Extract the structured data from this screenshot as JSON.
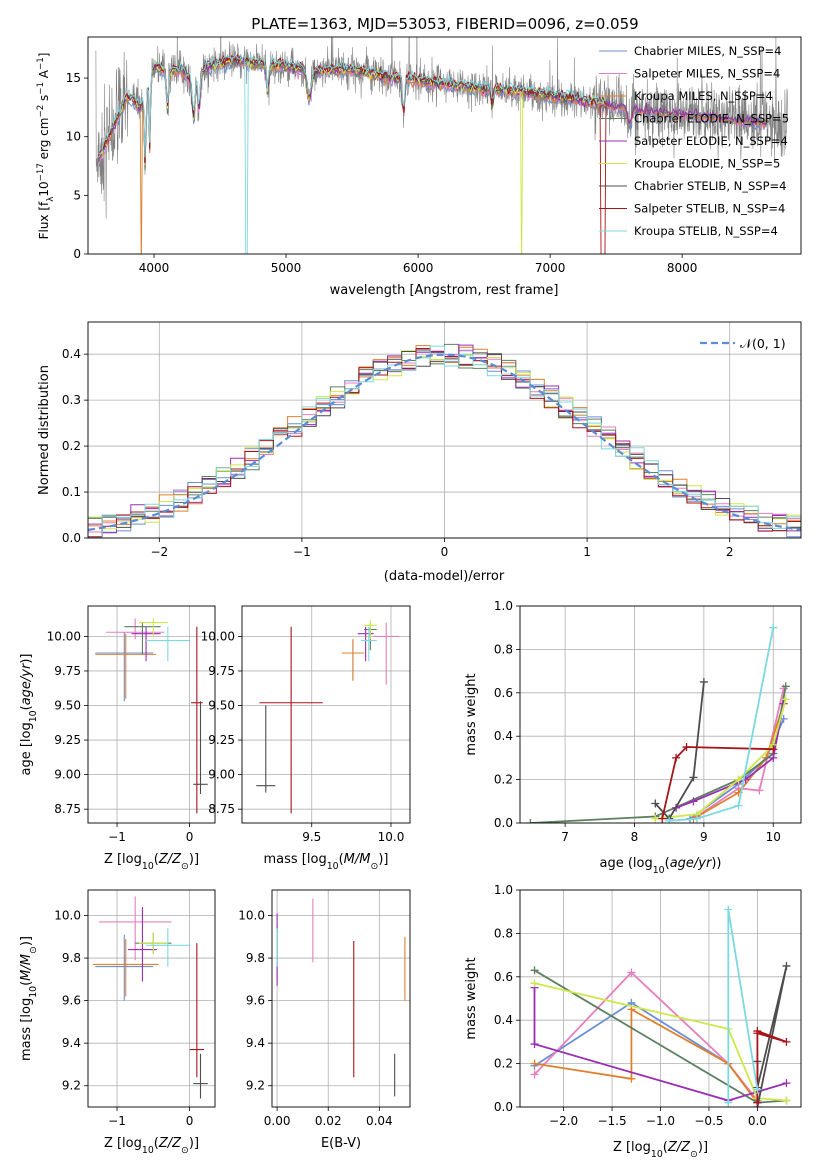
{
  "figure": {
    "title": "PLATE=1363, MJD=53053, FIBERID=0096, z=0.059"
  },
  "colors": {
    "Chabrier MILES": "#6b8fd6",
    "Salpeter MILES": "#e57fbf",
    "Kroupa MILES": "#e0802f",
    "Chabrier ELODIE": "#5c8060",
    "Salpeter ELODIE": "#9a2fb3",
    "Kroupa ELODIE": "#cde84a",
    "Chabrier STELIB": "#4d4d4d",
    "Salpeter STELIB": "#a8141a",
    "Kroupa STELIB": "#7dd8e0",
    "data": "#808080",
    "gaussian": "#5b8cd6"
  },
  "legend_spectrum": [
    {
      "name": "Chabrier MILES",
      "label": "Chabrier MILES, N_SSP=4"
    },
    {
      "name": "Salpeter MILES",
      "label": "Salpeter MILES, N_SSP=4"
    },
    {
      "name": "Kroupa MILES",
      "label": "Kroupa MILES, N_SSP=4"
    },
    {
      "name": "Chabrier ELODIE",
      "label": "Chabrier ELODIE, N_SSP=5"
    },
    {
      "name": "Salpeter ELODIE",
      "label": "Salpeter ELODIE, N_SSP=4"
    },
    {
      "name": "Kroupa ELODIE",
      "label": "Kroupa ELODIE, N_SSP=5"
    },
    {
      "name": "Chabrier STELIB",
      "label": "Chabrier STELIB, N_SSP=4"
    },
    {
      "name": "Salpeter STELIB",
      "label": "Salpeter STELIB, N_SSP=4"
    },
    {
      "name": "Kroupa STELIB",
      "label": "Kroupa STELIB, N_SSP=4"
    }
  ],
  "chart_data": [
    {
      "id": "spectrum",
      "type": "line",
      "xlabel": "wavelength [Angstrom, rest frame]",
      "ylabel": "Flux [f_λ 10^-17 erg cm^-2 s^-1 A^-1]",
      "xlim": [
        3500,
        8900
      ],
      "ylim": [
        0,
        18.5
      ],
      "xticks": [
        4000,
        5000,
        6000,
        7000,
        8000
      ],
      "yticks": [
        0,
        5,
        10,
        15
      ],
      "continuum": {
        "x": [
          3560,
          3600,
          3700,
          3800,
          3900,
          3950,
          4000,
          4100,
          4200,
          4300,
          4400,
          4500,
          4600,
          4800,
          5000,
          5200,
          5400,
          5600,
          5800,
          6000,
          6200,
          6400,
          6600,
          6800,
          7000,
          7200,
          7400,
          7600,
          7800,
          8000,
          8200,
          8400,
          8600,
          8800
        ],
        "y": [
          8.0,
          8.5,
          11.0,
          13.5,
          12.5,
          14.0,
          16.0,
          15.5,
          15.8,
          14.5,
          16.0,
          16.2,
          16.5,
          16.2,
          16.0,
          15.5,
          15.8,
          15.5,
          15.0,
          14.8,
          14.5,
          14.2,
          14.0,
          13.8,
          13.5,
          13.2,
          12.8,
          12.5,
          12.2,
          12.0,
          11.8,
          11.5,
          11.3,
          11.1
        ]
      },
      "grid": false,
      "legend": "upper-right"
    },
    {
      "id": "residuals",
      "type": "histogram",
      "xlabel": "(data-model)/error",
      "ylabel": "Normed distribution",
      "xlim": [
        -2.5,
        2.5
      ],
      "ylim": [
        0,
        0.47
      ],
      "xticks": [
        -2,
        -1,
        0,
        1,
        2
      ],
      "yticks": [
        0.0,
        0.1,
        0.2,
        0.3,
        0.4
      ],
      "bin_width": 0.1,
      "gaussian_label": "N(0,1)",
      "grid": true,
      "legend": "upper-right"
    },
    {
      "id": "age_vs_Z",
      "type": "errorbar",
      "xlabel": "Z [log10(Z/Z_sun)]",
      "ylabel": "age [log10(age/yr)]",
      "xlim": [
        -1.4,
        0.35
      ],
      "ylim": [
        8.65,
        10.22
      ],
      "xticks": [
        -1,
        0
      ],
      "yticks": [
        8.75,
        9.0,
        9.25,
        9.5,
        9.75,
        10.0
      ],
      "points": [
        {
          "model": "Chabrier MILES",
          "x": -0.9,
          "xerr": 0.4,
          "y": 9.88,
          "yerr": [
            0.35,
            0.15
          ]
        },
        {
          "model": "Salpeter MILES",
          "x": -0.75,
          "xerr": 0.4,
          "y": 10.03,
          "yerr": [
            0.05,
            0.1
          ]
        },
        {
          "model": "Kroupa MILES",
          "x": -0.88,
          "xerr": 0.42,
          "y": 9.87,
          "yerr": [
            0.32,
            0.15
          ]
        },
        {
          "model": "Chabrier ELODIE",
          "x": -0.65,
          "xerr": 0.25,
          "y": 10.07,
          "yerr": [
            0.2,
            0.03
          ]
        },
        {
          "model": "Salpeter ELODIE",
          "x": -0.6,
          "xerr": 0.2,
          "y": 10.02,
          "yerr": [
            0.2,
            0.05
          ]
        },
        {
          "model": "Kroupa ELODIE",
          "x": -0.5,
          "xerr": 0.2,
          "y": 10.1,
          "yerr": [
            0.1,
            0.03
          ]
        },
        {
          "model": "Chabrier STELIB",
          "x": 0.15,
          "xerr": 0.1,
          "y": 8.93,
          "yerr": [
            0.07,
            0.6
          ]
        },
        {
          "model": "Salpeter STELIB",
          "x": 0.1,
          "xerr": 0.08,
          "y": 9.52,
          "yerr": [
            0.8,
            0.55
          ]
        },
        {
          "model": "Kroupa STELIB",
          "x": -0.3,
          "xerr": 0.3,
          "y": 9.97,
          "yerr": [
            0.15,
            0.1
          ]
        }
      ],
      "grid": true
    },
    {
      "id": "age_vs_mass",
      "type": "errorbar",
      "xlabel": "mass [log10(M/M_sun)]",
      "ylabel": "",
      "xlim": [
        9.06,
        10.12
      ],
      "ylim": [
        8.65,
        10.22
      ],
      "xticks": [
        9.5,
        10.0
      ],
      "yticks": [
        8.75,
        9.0,
        9.25,
        9.5,
        9.75,
        10.0
      ],
      "points": [
        {
          "model": "Chabrier MILES",
          "x": 9.76,
          "xerr": 0.06,
          "y": 9.88,
          "yerr": [
            0.2,
            0.1
          ]
        },
        {
          "model": "Salpeter MILES",
          "x": 9.97,
          "xerr": 0.08,
          "y": 10.0,
          "yerr": [
            0.35,
            0.1
          ]
        },
        {
          "model": "Kroupa MILES",
          "x": 9.76,
          "xerr": 0.07,
          "y": 9.88,
          "yerr": [
            0.2,
            0.1
          ]
        },
        {
          "model": "Chabrier ELODIE",
          "x": 9.87,
          "xerr": 0.04,
          "y": 10.05,
          "yerr": [
            0.15,
            0.05
          ]
        },
        {
          "model": "Salpeter ELODIE",
          "x": 9.84,
          "xerr": 0.05,
          "y": 10.02,
          "yerr": [
            0.2,
            0.05
          ]
        },
        {
          "model": "Kroupa ELODIE",
          "x": 9.87,
          "xerr": 0.04,
          "y": 10.08,
          "yerr": [
            0.1,
            0.04
          ]
        },
        {
          "model": "Chabrier STELIB",
          "x": 9.21,
          "xerr": 0.06,
          "y": 8.92,
          "yerr": [
            0.05,
            0.58
          ]
        },
        {
          "model": "Salpeter STELIB",
          "x": 9.37,
          "xerr": 0.2,
          "y": 9.52,
          "yerr": [
            0.8,
            0.55
          ]
        },
        {
          "model": "Kroupa STELIB",
          "x": 9.86,
          "xerr": 0.05,
          "y": 9.97,
          "yerr": [
            0.15,
            0.1
          ]
        }
      ],
      "grid": true
    },
    {
      "id": "weight_vs_age",
      "type": "line",
      "xlabel": "age (log10(age/yr))",
      "ylabel": "mass weight",
      "xlim": [
        6.35,
        10.4
      ],
      "ylim": [
        0,
        1.0
      ],
      "xticks": [
        7,
        8,
        9,
        10
      ],
      "yticks": [
        0.0,
        0.2,
        0.4,
        0.6,
        0.8,
        1.0
      ],
      "series": [
        {
          "model": "Chabrier MILES",
          "x": [
            8.8,
            9.5,
            9.9,
            10.15
          ],
          "y": [
            0.02,
            0.18,
            0.3,
            0.48
          ]
        },
        {
          "model": "Salpeter MILES",
          "x": [
            8.9,
            9.5,
            9.8,
            10.15
          ],
          "y": [
            0.03,
            0.16,
            0.15,
            0.62
          ]
        },
        {
          "model": "Kroupa MILES",
          "x": [
            8.85,
            9.5,
            9.9,
            10.15
          ],
          "y": [
            0.02,
            0.14,
            0.3,
            0.55
          ]
        },
        {
          "model": "Chabrier ELODIE",
          "x": [
            6.5,
            8.3,
            9.5,
            10.0,
            10.18
          ],
          "y": [
            0.0,
            0.03,
            0.2,
            0.32,
            0.63
          ]
        },
        {
          "model": "Salpeter ELODIE",
          "x": [
            8.6,
            8.85,
            9.6,
            10.0,
            10.15
          ],
          "y": [
            0.07,
            0.1,
            0.2,
            0.3,
            0.55
          ]
        },
        {
          "model": "Kroupa ELODIE",
          "x": [
            8.3,
            8.9,
            9.5,
            10.0,
            10.18
          ],
          "y": [
            0.02,
            0.04,
            0.2,
            0.36,
            0.57
          ]
        },
        {
          "model": "Chabrier STELIB",
          "x": [
            8.3,
            8.5,
            8.85,
            9.0
          ],
          "y": [
            0.09,
            0.02,
            0.21,
            0.65
          ]
        },
        {
          "model": "Salpeter STELIB",
          "x": [
            8.4,
            8.6,
            8.75,
            10.0
          ],
          "y": [
            0.02,
            0.3,
            0.35,
            0.34
          ]
        },
        {
          "model": "Kroupa STELIB",
          "x": [
            8.5,
            8.9,
            9.5,
            10.0
          ],
          "y": [
            0.01,
            0.02,
            0.08,
            0.9
          ]
        }
      ],
      "grid": true
    },
    {
      "id": "mass_vs_Z",
      "type": "errorbar",
      "xlabel": "Z [log10(Z/Z_sun)]",
      "ylabel": "mass [log10(M/M_sun)]",
      "xlim": [
        -1.4,
        0.35
      ],
      "ylim": [
        9.1,
        10.12
      ],
      "xticks": [
        -1,
        0
      ],
      "yticks": [
        9.2,
        9.4,
        9.6,
        9.8,
        10.0
      ],
      "points": [
        {
          "model": "Chabrier MILES",
          "x": -0.9,
          "xerr": 0.4,
          "y": 9.76,
          "yerr": [
            0.16,
            0.15
          ]
        },
        {
          "model": "Salpeter MILES",
          "x": -0.75,
          "xerr": 0.5,
          "y": 9.97,
          "yerr": [
            0.18,
            0.12
          ]
        },
        {
          "model": "Kroupa MILES",
          "x": -0.88,
          "xerr": 0.45,
          "y": 9.77,
          "yerr": [
            0.15,
            0.12
          ]
        },
        {
          "model": "Chabrier ELODIE",
          "x": -0.5,
          "xerr": 0.25,
          "y": 9.87,
          "yerr": [
            0.05,
            0.05
          ]
        },
        {
          "model": "Salpeter ELODIE",
          "x": -0.65,
          "xerr": 0.2,
          "y": 9.84,
          "yerr": [
            0.15,
            0.2
          ]
        },
        {
          "model": "Kroupa ELODIE",
          "x": -0.5,
          "xerr": 0.2,
          "y": 9.87,
          "yerr": [
            0.05,
            0.05
          ]
        },
        {
          "model": "Chabrier STELIB",
          "x": 0.15,
          "xerr": 0.1,
          "y": 9.21,
          "yerr": [
            0.07,
            0.14
          ]
        },
        {
          "model": "Salpeter STELIB",
          "x": 0.1,
          "xerr": 0.1,
          "y": 9.37,
          "yerr": [
            0.13,
            0.5
          ]
        },
        {
          "model": "Kroupa STELIB",
          "x": -0.3,
          "xerr": 0.3,
          "y": 9.86,
          "yerr": [
            0.1,
            0.08
          ]
        }
      ],
      "grid": true
    },
    {
      "id": "mass_vs_EBV",
      "type": "errorbar",
      "xlabel": "E(B-V)",
      "ylabel": "",
      "xlim": [
        -0.002,
        0.052
      ],
      "ylim": [
        9.1,
        10.12
      ],
      "xticks": [
        0.0,
        0.02,
        0.04
      ],
      "yticks": [
        9.2,
        9.4,
        9.6,
        9.8,
        10.0
      ],
      "points": [
        {
          "model": "Chabrier MILES",
          "x": 0.0,
          "xerr": 0.0,
          "y": 9.85,
          "yerr": [
            0.15,
            0.1
          ]
        },
        {
          "model": "Salpeter MILES",
          "x": 0.014,
          "xerr": 0.0,
          "y": 9.93,
          "yerr": [
            0.15,
            0.15
          ]
        },
        {
          "model": "Kroupa MILES",
          "x": 0.05,
          "xerr": 0.0,
          "y": 9.75,
          "yerr": [
            0.15,
            0.15
          ]
        },
        {
          "model": "Chabrier ELODIE",
          "x": 0.0,
          "xerr": 0.0,
          "y": 9.87,
          "yerr": [
            0.05,
            0.05
          ]
        },
        {
          "model": "Salpeter ELODIE",
          "x": 0.0,
          "xerr": 0.0,
          "y": 9.84,
          "yerr": [
            0.17,
            0.17
          ]
        },
        {
          "model": "Kroupa ELODIE",
          "x": 0.0,
          "xerr": 0.0,
          "y": 9.87,
          "yerr": [
            0.05,
            0.05
          ]
        },
        {
          "model": "Chabrier STELIB",
          "x": 0.046,
          "xerr": 0.0,
          "y": 9.25,
          "yerr": [
            0.1,
            0.1
          ]
        },
        {
          "model": "Salpeter STELIB",
          "x": 0.03,
          "xerr": 0.0,
          "y": 9.56,
          "yerr": [
            0.32,
            0.32
          ]
        },
        {
          "model": "Kroupa STELIB",
          "x": 0.0,
          "xerr": 0.0,
          "y": 9.86,
          "yerr": [
            0.1,
            0.08
          ]
        }
      ],
      "grid": true
    },
    {
      "id": "weight_vs_Z",
      "type": "line",
      "xlabel": "Z [log10(Z/Z_sun)]",
      "ylabel": "mass weight",
      "xlim": [
        -2.45,
        0.45
      ],
      "ylim": [
        0,
        1.0
      ],
      "xticks": [
        -2.0,
        -1.5,
        -1.0,
        -0.5,
        0.0
      ],
      "yticks": [
        0.0,
        0.2,
        0.4,
        0.6,
        0.8,
        1.0
      ],
      "series": [
        {
          "model": "Chabrier MILES",
          "x": [
            -2.3,
            -1.3,
            -0.3,
            0.0
          ],
          "y": [
            0.19,
            0.48,
            0.2,
            0.02
          ]
        },
        {
          "model": "Salpeter MILES",
          "x": [
            -2.3,
            -1.3,
            -0.3,
            0.0
          ],
          "y": [
            0.15,
            0.62,
            0.2,
            0.03
          ]
        },
        {
          "model": "Kroupa MILES",
          "x": [
            -2.3,
            -1.3,
            -1.3,
            -0.3,
            0.0
          ],
          "y": [
            0.2,
            0.13,
            0.45,
            0.2,
            0.02
          ]
        },
        {
          "model": "Chabrier ELODIE",
          "x": [
            -2.3,
            0.0,
            0.3
          ],
          "y": [
            0.63,
            0.02,
            0.03
          ]
        },
        {
          "model": "Salpeter ELODIE",
          "x": [
            -2.3,
            -2.3,
            -0.3,
            0.0,
            0.3
          ],
          "y": [
            0.55,
            0.29,
            0.03,
            0.07,
            0.11
          ]
        },
        {
          "model": "Kroupa ELODIE",
          "x": [
            -2.3,
            -0.3,
            0.0,
            0.3
          ],
          "y": [
            0.57,
            0.36,
            0.04,
            0.03
          ]
        },
        {
          "model": "Chabrier STELIB",
          "x": [
            0.0,
            0.3,
            0.0,
            0.0
          ],
          "y": [
            0.0,
            0.65,
            0.09,
            0.21
          ]
        },
        {
          "model": "Salpeter STELIB",
          "x": [
            0.0,
            0.0,
            0.3,
            0.0
          ],
          "y": [
            0.02,
            0.34,
            0.3,
            0.35
          ]
        },
        {
          "model": "Kroupa STELIB",
          "x": [
            -0.3,
            -0.3,
            0.0
          ],
          "y": [
            0.02,
            0.91,
            0.08
          ]
        }
      ],
      "grid": true
    }
  ]
}
